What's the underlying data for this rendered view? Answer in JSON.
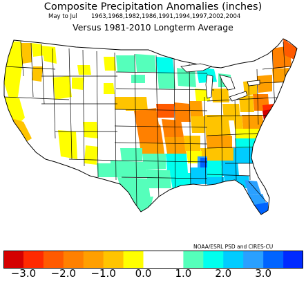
{
  "title": "Composite Precipitation Anomalies (inches)",
  "period": "May to Jul",
  "years": "1963,1968,1982,1986,1991,1994,1997,2002,2004",
  "subtitle": "Versus 1981-2010 Longterm Average",
  "credit": "NOAA/ESRL PSD and CIRES-CU",
  "colorbar": {
    "colors": [
      "#d40000",
      "#ff2a00",
      "#ff5a00",
      "#ff8000",
      "#ff9f00",
      "#ffc400",
      "#ffff00",
      "#ffffff",
      "#ffffff",
      "#55ffbb",
      "#00ffee",
      "#00ccff",
      "#2aa0ff",
      "#0064ff",
      "#002aff"
    ],
    "ticks": [
      "-3.0",
      "-2.0",
      "-1.0",
      "0.0",
      "1.0",
      "2.0",
      "3.0"
    ]
  },
  "palette": {
    "yellow": "#ffff00",
    "gold": "#ffc400",
    "orange_light": "#ff9f00",
    "orange": "#ff8000",
    "orange_dark": "#ff5a00",
    "red": "#ff2a00",
    "red_dark": "#d40000",
    "mint": "#55ffbb",
    "cyan": "#00ffee",
    "sky": "#00ccff",
    "blue_mid": "#2aa0ff",
    "blue": "#0064ff"
  }
}
